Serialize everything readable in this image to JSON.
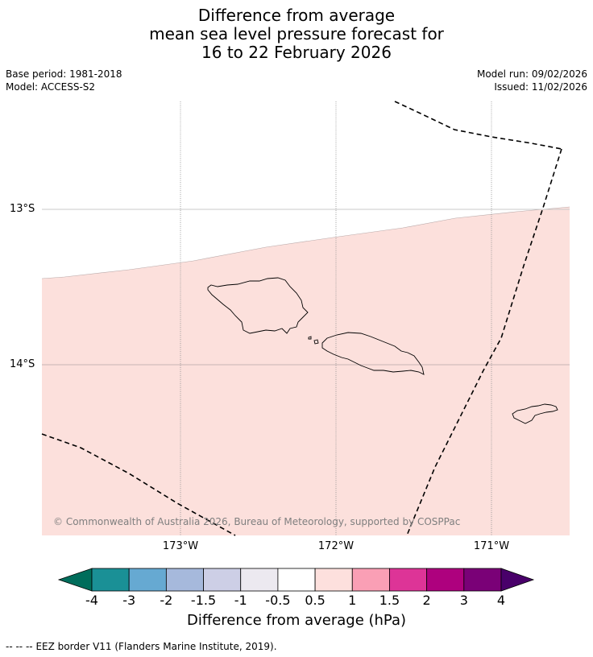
{
  "title": {
    "line1": "Difference from average",
    "line2": "mean sea level pressure forecast for",
    "line3": "16 to 22 February 2026"
  },
  "meta": {
    "base_period": "Base period: 1981-2018",
    "model": "Model: ACCESS-S2",
    "model_run": "Model run: 09/02/2026",
    "issued": "Issued: 11/02/2026"
  },
  "map": {
    "latitude_labels": [
      "13°S",
      "14°S"
    ],
    "longitude_labels": [
      "173°W",
      "172°W",
      "171°W"
    ],
    "copyright": "© Commonwealth of Australia 2026, Bureau of Meteorology, supported by COSPPac",
    "anomaly_fill_color": "#fce0dc",
    "anomaly_band": "0.5 to 1"
  },
  "colorbar": {
    "title": "Difference from average (hPa)",
    "tick_labels": [
      "-4",
      "-3",
      "-2",
      "-1.5",
      "-1",
      "-0.5",
      "0.5",
      "1",
      "1.5",
      "2",
      "3",
      "4"
    ],
    "colors": [
      "#006d5b",
      "#1a9096",
      "#66a9d2",
      "#a6b9dc",
      "#cdcfe6",
      "#ece9f0",
      "#ffffff",
      "#fde0dd",
      "#fa9fb5",
      "#dd3497",
      "#ae017e",
      "#7a0177",
      "#49006a"
    ]
  },
  "footer": {
    "legend_symbol": "--  --  --",
    "legend_text": "EEZ border V11 (Flanders Marine Institute, 2019)."
  }
}
